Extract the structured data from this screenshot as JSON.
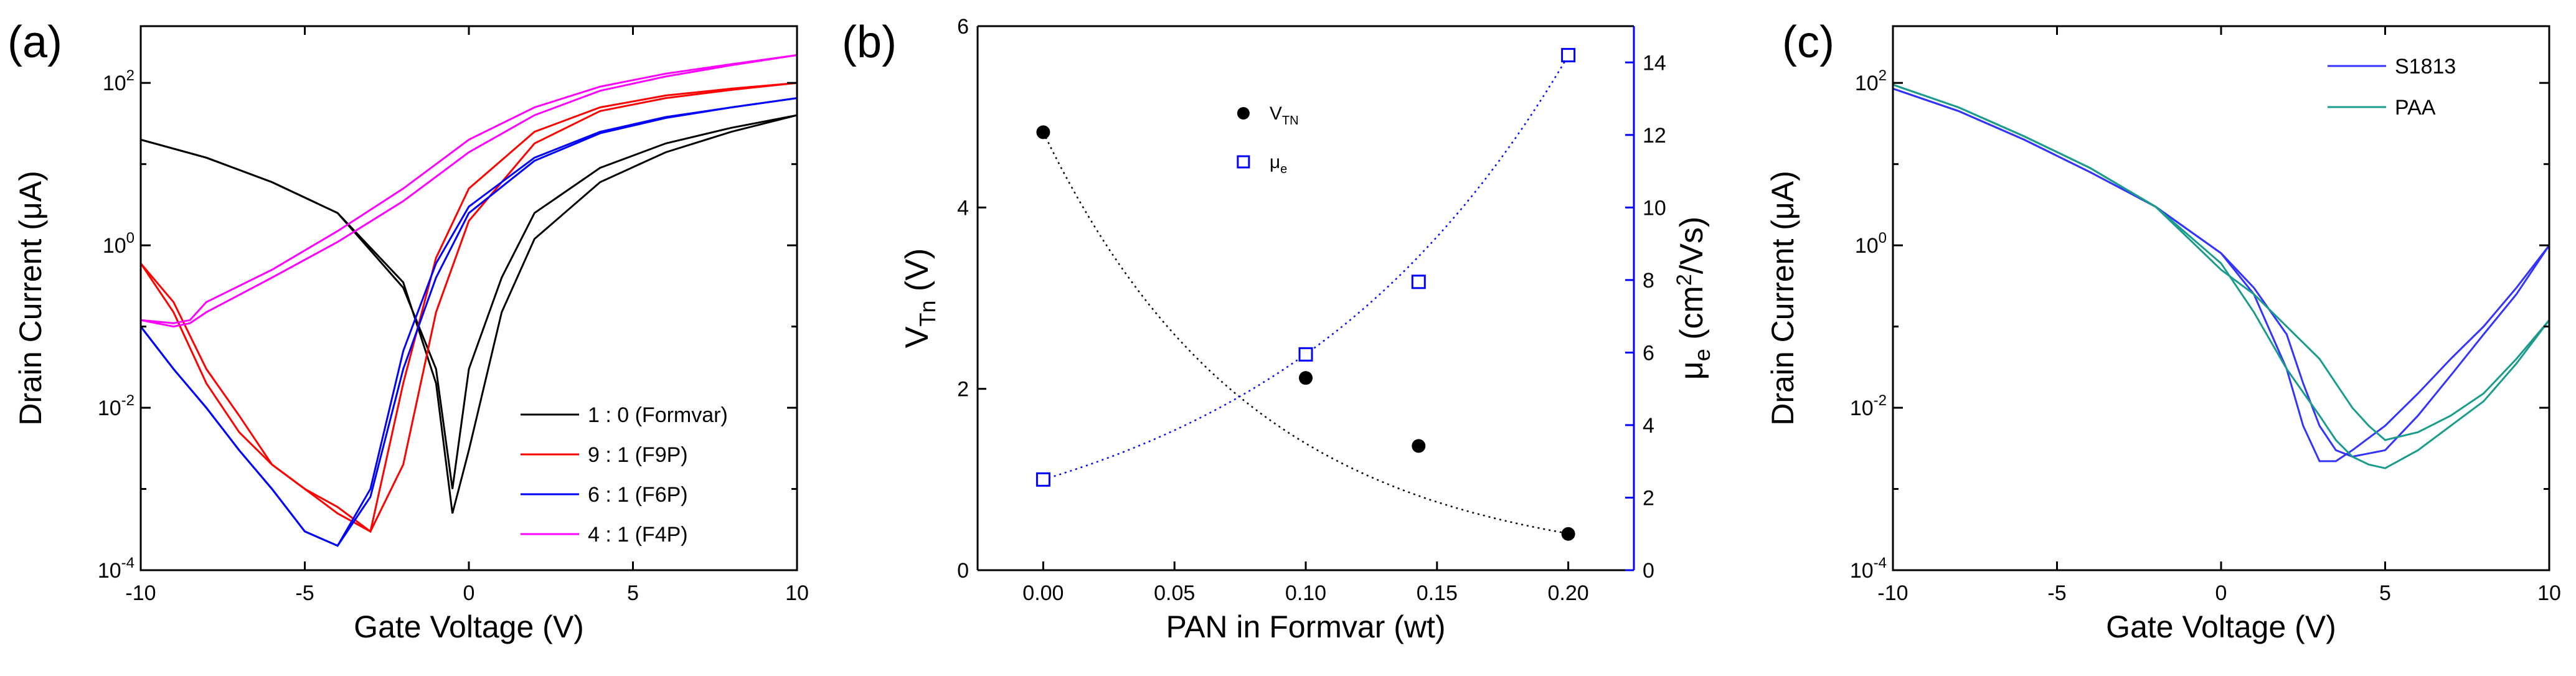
{
  "chart_data": [
    {
      "type": "line",
      "panel_label": "(a)",
      "xlabel": "Gate Voltage (V)",
      "ylabel": "Drain Current (μA)",
      "xlim": [
        -10,
        10
      ],
      "ylim": [
        0.0001,
        500
      ],
      "yscale": "log",
      "xticks": [
        "-10",
        "-5",
        "0",
        "5",
        "10"
      ],
      "yticks": [
        {
          "base": "10",
          "exp": "-4"
        },
        {
          "base": "10",
          "exp": "-2"
        },
        {
          "base": "10",
          "exp": "0"
        },
        {
          "base": "10",
          "exp": "2"
        }
      ],
      "legend_position": "bottom-right",
      "series": [
        {
          "name": "1 : 0 (Formvar)",
          "color": "#000000",
          "x": [
            -10,
            -8,
            -6,
            -4,
            -2,
            -1,
            -0.5,
            0,
            1,
            2,
            4,
            6,
            8,
            10
          ],
          "y_forward": [
            20,
            12,
            6,
            2.5,
            0.3,
            0.03,
            0.001,
            0.03,
            0.4,
            2.5,
            9,
            18,
            28,
            40
          ],
          "y_reverse": [
            20,
            12,
            6,
            2.5,
            0.35,
            0.02,
            0.0005,
            0.003,
            0.15,
            1.2,
            6,
            14,
            25,
            40
          ]
        },
        {
          "name": "9 : 1 (F9P)",
          "color": "#ff0000",
          "x": [
            -10,
            -9,
            -8,
            -7,
            -6,
            -5,
            -4,
            -3,
            -2,
            -1,
            0,
            2,
            4,
            6,
            8,
            10
          ],
          "y_forward": [
            0.6,
            0.15,
            0.02,
            0.005,
            0.002,
            0.001,
            0.0005,
            0.0003,
            0.02,
            0.7,
            5,
            25,
            50,
            70,
            85,
            100
          ],
          "y_reverse": [
            0.6,
            0.2,
            0.03,
            0.008,
            0.002,
            0.001,
            0.0006,
            0.0003,
            0.002,
            0.15,
            2,
            18,
            45,
            65,
            82,
            100
          ]
        },
        {
          "name": "6 : 1 (F6P)",
          "color": "#0000ff",
          "x": [
            -10,
            -9,
            -8,
            -7,
            -6,
            -5,
            -4,
            -3,
            -2,
            -1,
            0,
            2,
            4,
            6,
            8,
            10
          ],
          "y_forward": [
            0.1,
            0.03,
            0.01,
            0.003,
            0.001,
            0.0003,
            0.0002,
            0.001,
            0.05,
            0.6,
            3,
            12,
            25,
            38,
            50,
            65
          ],
          "y_reverse": [
            0.1,
            0.03,
            0.01,
            0.003,
            0.001,
            0.0003,
            0.0002,
            0.0008,
            0.03,
            0.4,
            2.5,
            11,
            24,
            37,
            50,
            65
          ]
        },
        {
          "name": "4 : 1 (F4P)",
          "color": "#ff00ff",
          "x": [
            -10,
            -9,
            -8.5,
            -8,
            -6,
            -4,
            -2,
            -1,
            0,
            2,
            4,
            6,
            8,
            10
          ],
          "y_forward": [
            0.12,
            0.11,
            0.12,
            0.2,
            0.5,
            1.5,
            5,
            10,
            20,
            50,
            90,
            130,
            170,
            220
          ],
          "y_reverse": [
            0.12,
            0.1,
            0.11,
            0.15,
            0.4,
            1.1,
            3.5,
            7,
            14,
            40,
            80,
            120,
            165,
            220
          ]
        }
      ]
    },
    {
      "type": "scatter",
      "panel_label": "(b)",
      "xlabel": "PAN in Formvar (wt)",
      "ylabel_left": {
        "main": "V",
        "sub": "Tn",
        "unit": " (V)"
      },
      "ylabel_right": {
        "main": "μ",
        "sub": "e",
        "unit1": " (cm",
        "sup": "2",
        "unit2": "/Vs)"
      },
      "xlim": [
        -0.025,
        0.225
      ],
      "ylim_left": [
        0,
        6
      ],
      "ylim_right": [
        0,
        15
      ],
      "xticks": [
        "0.00",
        "0.05",
        "0.10",
        "0.15",
        "0.20"
      ],
      "yticks_left": [
        "0",
        "2",
        "4",
        "6"
      ],
      "yticks_right": [
        "0",
        "2",
        "4",
        "6",
        "8",
        "10",
        "12",
        "14"
      ],
      "right_axis_color": "#0000ff",
      "legend_position": "top-center",
      "series": [
        {
          "name": {
            "main": "V",
            "sub": "TN"
          },
          "axis": "left",
          "marker": "filled-circle",
          "color": "#000000",
          "x": [
            0.0,
            0.1,
            0.143,
            0.2
          ],
          "y": [
            4.83,
            2.12,
            1.37,
            0.4
          ]
        },
        {
          "name": {
            "main": "μ",
            "sub": "e"
          },
          "axis": "right",
          "marker": "open-square",
          "color": "#0000ff",
          "x": [
            0.0,
            0.1,
            0.143,
            0.2
          ],
          "y": [
            2.5,
            5.95,
            7.95,
            14.2
          ]
        }
      ]
    },
    {
      "type": "line",
      "panel_label": "(c)",
      "xlabel": "Gate Voltage (V)",
      "ylabel": "Drain Current (μA)",
      "xlim": [
        -10,
        10
      ],
      "ylim": [
        0.0001,
        500
      ],
      "yscale": "log",
      "xticks": [
        "-10",
        "-5",
        "0",
        "5",
        "10"
      ],
      "yticks": [
        {
          "base": "10",
          "exp": "-4"
        },
        {
          "base": "10",
          "exp": "-2"
        },
        {
          "base": "10",
          "exp": "0"
        },
        {
          "base": "10",
          "exp": "2"
        }
      ],
      "legend_position": "top-right",
      "series": [
        {
          "name": "S1813",
          "color": "#3333ff",
          "x": [
            -10,
            -8,
            -6,
            -4,
            -2,
            0,
            1,
            2,
            2.5,
            3,
            3.5,
            4,
            5,
            6,
            7,
            8,
            9,
            10
          ],
          "y_forward": [
            85,
            45,
            20,
            8,
            3,
            0.8,
            0.25,
            0.03,
            0.006,
            0.0022,
            0.0022,
            0.003,
            0.006,
            0.015,
            0.04,
            0.1,
            0.3,
            1
          ],
          "y_reverse": [
            85,
            45,
            20,
            8,
            3,
            0.8,
            0.3,
            0.08,
            0.02,
            0.006,
            0.003,
            0.0025,
            0.003,
            0.008,
            0.025,
            0.08,
            0.25,
            1
          ]
        },
        {
          "name": "PAA",
          "color": "#1a9c8c",
          "x": [
            -10,
            -8,
            -6,
            -4,
            -2,
            0,
            1,
            2,
            3,
            3.5,
            4,
            4.5,
            5,
            6,
            7,
            8,
            9,
            10
          ],
          "y_forward": [
            95,
            50,
            22,
            9,
            3,
            0.5,
            0.25,
            0.1,
            0.04,
            0.02,
            0.01,
            0.006,
            0.004,
            0.005,
            0.008,
            0.015,
            0.04,
            0.12
          ],
          "y_reverse": [
            95,
            50,
            22,
            9,
            3,
            0.6,
            0.15,
            0.03,
            0.008,
            0.004,
            0.0025,
            0.002,
            0.0018,
            0.003,
            0.006,
            0.012,
            0.035,
            0.12
          ]
        }
      ]
    }
  ]
}
